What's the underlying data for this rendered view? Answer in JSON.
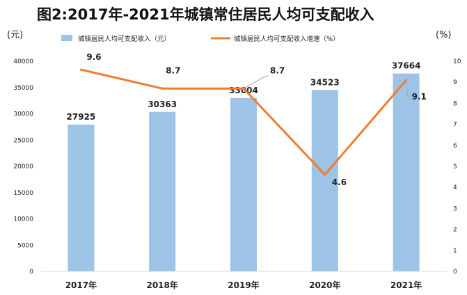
{
  "chart_data": {
    "type": "bar",
    "title": "图2:2017年-2021年城镇常住居民人均可支配收入",
    "categories": [
      "2017年",
      "2018年",
      "2019年",
      "2020年",
      "2021年"
    ],
    "series": [
      {
        "name": "城镇居民人均可支配收入（元）",
        "type": "bar",
        "axis": "left",
        "color": "#9DC3E6",
        "values": [
          27925,
          30363,
          33004,
          34523,
          37664
        ],
        "labels": [
          "27925",
          "30363",
          "33004",
          "34523",
          "37664"
        ]
      },
      {
        "name": "城镇居民人均可支配收入增速（%）",
        "type": "line",
        "axis": "right",
        "color": "#ED7D31",
        "values": [
          9.6,
          8.7,
          8.7,
          4.6,
          9.1
        ],
        "labels": [
          "9.6",
          "8.7",
          "8.7",
          "4.6",
          "9.1"
        ]
      }
    ],
    "left_axis": {
      "unit": "(元)",
      "ylim": [
        0,
        40000
      ],
      "ticks": [
        "0",
        "5000",
        "10000",
        "15000",
        "20000",
        "25000",
        "30000",
        "35000",
        "40000"
      ]
    },
    "right_axis": {
      "unit": "(%)",
      "ylim": [
        0,
        10
      ],
      "ticks": [
        "0",
        "1",
        "2",
        "3",
        "4",
        "5",
        "6",
        "7",
        "8",
        "9",
        "10"
      ]
    },
    "grid": false,
    "legend_position": "top"
  }
}
